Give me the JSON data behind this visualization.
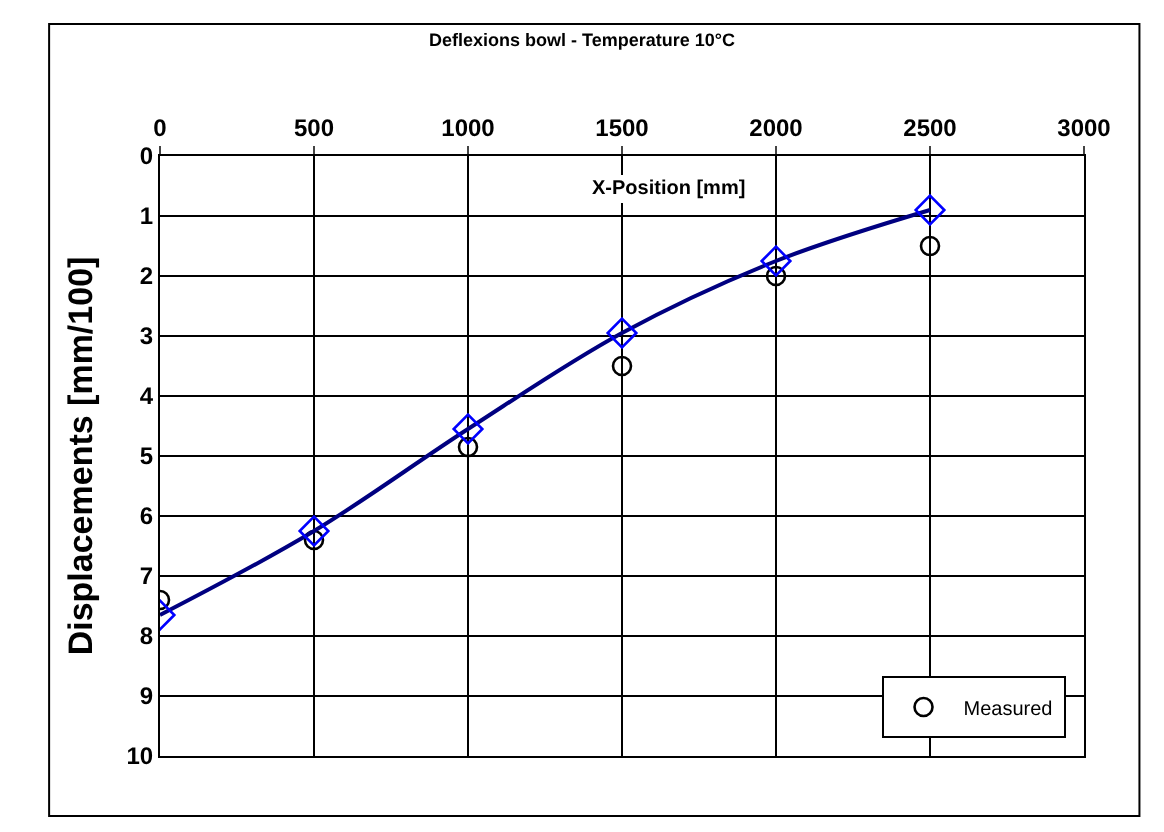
{
  "chart_data": {
    "type": "line",
    "title": "Deflexions bowl - Temperature 10°C",
    "xlabel": "X-Position [mm]",
    "ylabel": "Displacements [mm/100]",
    "x": [
      0,
      500,
      1000,
      1500,
      2000,
      2500
    ],
    "series": [
      {
        "name": "Measured",
        "type": "scatter",
        "marker": "circle",
        "color": "#000000",
        "values": [
          7.4,
          6.4,
          4.85,
          3.5,
          2.0,
          1.5
        ]
      },
      {
        "marker": "diamond",
        "color": "#000080",
        "values": [
          7.65,
          6.25,
          4.55,
          2.95,
          1.75,
          0.9
        ]
      }
    ],
    "xlim": [
      0,
      3000
    ],
    "xticks": [
      0,
      500,
      1000,
      1500,
      2000,
      2500,
      3000
    ],
    "ylim": [
      10,
      0
    ],
    "yticks": [
      0,
      1,
      2,
      3,
      4,
      5,
      6,
      7,
      8,
      9,
      10
    ],
    "grid": true,
    "legend": "bottom right"
  }
}
